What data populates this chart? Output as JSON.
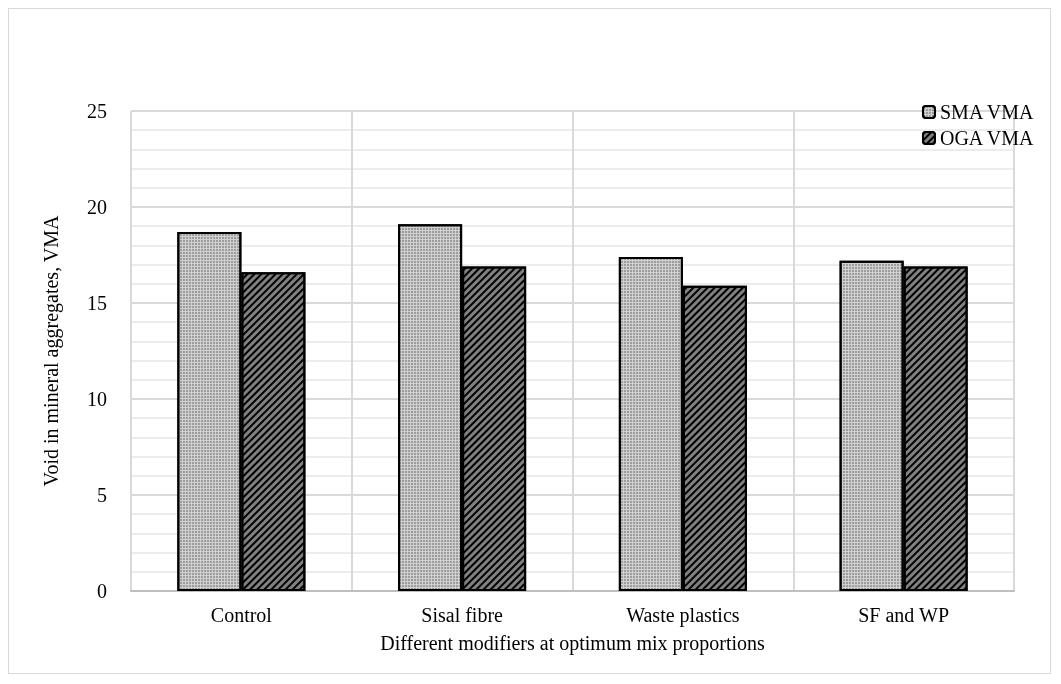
{
  "chart_data": {
    "type": "bar",
    "xlabel": "Different modifiers at optimum mix proportions",
    "ylabel": "Void in mineral aggregates, VMA",
    "categories": [
      "Control",
      "Sisal fibre",
      "Waste plastics",
      "SF and WP"
    ],
    "series": [
      {
        "name": "SMA VMA",
        "color": "#d0d0d0",
        "values": [
          18.7,
          19.1,
          17.4,
          17.2
        ]
      },
      {
        "name": "OGA VMA",
        "color": "#808080",
        "values": [
          16.6,
          16.9,
          15.9,
          16.9
        ]
      }
    ],
    "ylim": [
      0,
      25
    ],
    "yticks": [
      0,
      5,
      10,
      15,
      20,
      25
    ],
    "grid": true,
    "legend": "top right"
  }
}
